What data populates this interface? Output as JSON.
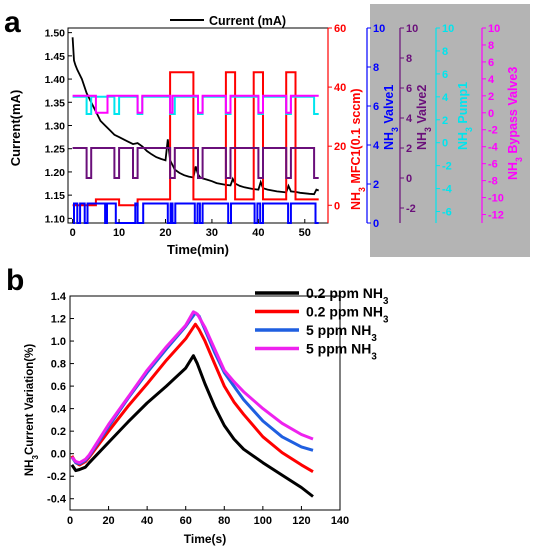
{
  "chart_data": [
    {
      "panel_label": "a",
      "type": "line",
      "xlabel": "Time(min)",
      "xlim": [
        -1,
        55
      ],
      "xticks": [
        0,
        10,
        20,
        30,
        40,
        50
      ],
      "legend": {
        "label": "Current (mA)",
        "placement": "top"
      },
      "axes": [
        {
          "key": "current",
          "label": "Current(mA)",
          "color": "#000000",
          "side": "left",
          "ylim": [
            1.09,
            1.51
          ],
          "ticks": [
            1.1,
            1.15,
            1.2,
            1.25,
            1.3,
            1.35,
            1.4,
            1.45,
            1.5
          ],
          "tick_labels": [
            "1.10",
            "1.15",
            "1.20",
            "1.25",
            "1.30",
            "1.35",
            "1.40",
            "1.45",
            "1.50"
          ]
        },
        {
          "key": "mfc",
          "label": "NH3 MFC1(0.1 sccm)",
          "color": "#ff0000",
          "side": "right",
          "ylim": [
            -6,
            60
          ],
          "ticks": [
            0,
            20,
            40,
            60
          ],
          "tick_labels": [
            "0",
            "20",
            "40",
            "60"
          ]
        },
        {
          "key": "valve1",
          "label": "NH3 Valve1",
          "color": "#0000ff",
          "side": "right",
          "ylim": [
            0,
            10
          ],
          "ticks": [
            0,
            2,
            4,
            6,
            8,
            10
          ],
          "tick_labels": [
            "0",
            "2",
            "4",
            "6",
            "8",
            "10"
          ]
        },
        {
          "key": "valve2",
          "label": "NH3 Valve2",
          "color": "#6a0f7a",
          "side": "right",
          "ylim": [
            -3,
            10
          ],
          "ticks": [
            -2,
            0,
            2,
            4,
            6,
            8,
            10
          ],
          "tick_labels": [
            "-2",
            "0",
            "2",
            "4",
            "6",
            "8",
            "10"
          ]
        },
        {
          "key": "pump1",
          "label": "NH3 Pump1",
          "color": "#00e5ee",
          "side": "right",
          "ylim": [
            -7,
            10
          ],
          "ticks": [
            -6,
            -4,
            -2,
            0,
            2,
            4,
            6,
            8,
            10
          ],
          "tick_labels": [
            "-6",
            "-4",
            "-2",
            "0",
            "2",
            "4",
            "6",
            "8",
            "10"
          ]
        },
        {
          "key": "bypass",
          "label": "NH3 Bypass Valve3",
          "color": "#ff00ff",
          "side": "right",
          "ylim": [
            -13,
            10
          ],
          "ticks": [
            -12,
            -10,
            -8,
            -6,
            -4,
            -2,
            0,
            2,
            4,
            6,
            8,
            10
          ],
          "tick_labels": [
            "-12",
            "-10",
            "-8",
            "-6",
            "-4",
            "-2",
            "0",
            "2",
            "4",
            "6",
            "8",
            "10"
          ]
        }
      ],
      "series": [
        {
          "key": "current",
          "name": "Current (mA)",
          "color": "#000000",
          "step": false,
          "x": [
            0,
            0.3,
            0.6,
            1,
            2,
            3,
            4,
            5,
            6,
            7,
            8,
            9,
            10,
            11,
            12,
            13,
            14,
            15,
            16,
            17,
            18,
            19,
            20,
            20.5,
            21,
            21.5,
            22,
            23,
            24,
            25,
            26,
            26.5,
            27,
            27.5,
            28,
            29,
            30,
            31,
            32,
            33,
            34,
            34.5,
            35,
            36,
            37,
            38,
            39,
            40,
            40.5,
            41,
            42,
            43,
            44,
            45,
            46,
            46.5,
            47,
            48,
            49,
            50,
            51,
            52,
            52.5,
            53
          ],
          "y": [
            1.49,
            1.44,
            1.43,
            1.42,
            1.4,
            1.37,
            1.35,
            1.33,
            1.31,
            1.3,
            1.29,
            1.28,
            1.275,
            1.27,
            1.265,
            1.26,
            1.262,
            1.255,
            1.245,
            1.238,
            1.232,
            1.228,
            1.225,
            1.27,
            1.225,
            1.215,
            1.205,
            1.198,
            1.193,
            1.19,
            1.188,
            1.212,
            1.195,
            1.188,
            1.186,
            1.183,
            1.18,
            1.176,
            1.174,
            1.172,
            1.171,
            1.185,
            1.175,
            1.17,
            1.167,
            1.165,
            1.163,
            1.162,
            1.178,
            1.165,
            1.162,
            1.16,
            1.158,
            1.157,
            1.156,
            1.17,
            1.158,
            1.157,
            1.155,
            1.154,
            1.153,
            1.152,
            1.162,
            1.16
          ]
        },
        {
          "key": "mfc",
          "name": "NH3 MFC1(0.1 sccm)",
          "color": "#ff0000",
          "step": true,
          "x": [
            0,
            5,
            5,
            10,
            10,
            14,
            14,
            21,
            21,
            26,
            26,
            28,
            28,
            33,
            33,
            35,
            35,
            39,
            39,
            41,
            41,
            46,
            46,
            48,
            48,
            53
          ],
          "y": [
            0,
            0,
            2,
            2,
            0,
            0,
            2,
            2,
            45,
            45,
            2,
            2,
            2,
            2,
            45,
            45,
            2,
            2,
            45,
            45,
            2,
            2,
            45,
            45,
            2,
            2
          ]
        },
        {
          "key": "valve1",
          "name": "NH3 Valve1",
          "color": "#0000ff",
          "step": true,
          "x": [
            0,
            0.3,
            0.3,
            1,
            1,
            1.6,
            1.6,
            2.6,
            2.6,
            3.2,
            3.2,
            7,
            7,
            7.4,
            7.4,
            9.3,
            9.3,
            13.5,
            13.5,
            14,
            14,
            15.2,
            15.2,
            20.5,
            20.5,
            21.1,
            21.1,
            21.5,
            21.5,
            22.1,
            22.1,
            26.3,
            26.3,
            26.9,
            26.9,
            27.4,
            27.4,
            28,
            28,
            33.5,
            33.5,
            34.1,
            34.1,
            39.2,
            39.2,
            39.8,
            39.8,
            40.4,
            40.4,
            41,
            41,
            46.4,
            46.4,
            47,
            47,
            52.3,
            52.3,
            53
          ],
          "y": [
            0,
            0,
            1,
            1,
            0,
            0,
            1,
            1,
            0,
            0,
            1,
            1,
            0,
            0,
            1,
            1,
            0,
            0,
            1,
            1,
            0,
            0,
            1,
            1,
            0,
            0,
            1,
            1,
            0,
            0,
            1,
            1,
            0,
            0,
            1,
            1,
            0,
            0,
            1,
            1,
            0,
            0,
            1,
            1,
            0,
            0,
            1,
            1,
            0,
            0,
            1,
            1,
            0,
            0,
            1,
            1,
            0,
            0
          ]
        },
        {
          "key": "valve2",
          "name": "NH3 Valve2",
          "color": "#6a0f7a",
          "step": true,
          "x": [
            0,
            3,
            3,
            4,
            4,
            9,
            9,
            10,
            10,
            13,
            13,
            14,
            14,
            21,
            21,
            22,
            22,
            27,
            27,
            28,
            28,
            33,
            33,
            34,
            34,
            40,
            40,
            41,
            41,
            46,
            46,
            47,
            47,
            52,
            52,
            53
          ],
          "y": [
            2,
            2,
            0,
            0,
            2,
            2,
            0,
            0,
            2,
            2,
            0,
            0,
            2,
            2,
            0,
            0,
            2,
            2,
            0,
            0,
            2,
            2,
            0,
            0,
            2,
            2,
            0,
            0,
            2,
            2,
            0,
            0,
            2,
            2,
            0,
            0
          ]
        },
        {
          "key": "pump1",
          "name": "NH3 Pump1",
          "color": "#00e5ee",
          "step": true,
          "x": [
            0,
            3,
            3,
            4,
            4,
            9,
            9,
            10,
            10,
            14,
            14,
            15,
            15,
            21,
            21,
            22,
            22,
            27,
            27,
            28,
            28,
            33,
            33,
            34,
            34,
            40,
            40,
            41,
            41,
            46,
            46,
            47,
            47,
            52,
            52,
            53
          ],
          "y": [
            4,
            4,
            2.5,
            2.5,
            4,
            4,
            2.5,
            2.5,
            4,
            4,
            2.5,
            2.5,
            4,
            4,
            2.5,
            2.5,
            4,
            4,
            2.5,
            2.5,
            4,
            4,
            2.5,
            2.5,
            4,
            4,
            2.5,
            2.5,
            4,
            4,
            2.5,
            2.5,
            4,
            4,
            2.5,
            2.5
          ]
        },
        {
          "key": "bypass",
          "name": "NH3 Bypass Valve3",
          "color": "#ff00ff",
          "step": true,
          "x": [
            0,
            5,
            5,
            7.5,
            7.5,
            14,
            14,
            15,
            15,
            21,
            21,
            21.5,
            21.5,
            27,
            27,
            28,
            28,
            33,
            33,
            34,
            34,
            40,
            40,
            41,
            41,
            46,
            46,
            47,
            47,
            53
          ],
          "y": [
            2,
            2,
            0,
            0,
            2,
            2,
            0,
            0,
            2,
            2,
            0,
            0,
            2,
            2,
            0,
            0,
            2,
            2,
            0,
            0,
            2,
            2,
            0,
            0,
            2,
            2,
            0,
            0,
            2,
            2
          ]
        }
      ]
    },
    {
      "panel_label": "b",
      "type": "line",
      "xlabel": "Time(s)",
      "ylabel": "NH3 Current Variation(%)",
      "xlim": [
        0,
        140
      ],
      "ylim": [
        -0.5,
        1.4
      ],
      "xticks": [
        0,
        20,
        40,
        60,
        80,
        100,
        120,
        140
      ],
      "yticks": [
        -0.4,
        -0.2,
        0.0,
        0.2,
        0.4,
        0.6,
        0.8,
        1.0,
        1.2,
        1.4
      ],
      "ytick_labels": [
        "-0.4",
        "-0.2",
        "0.0",
        "0.2",
        "0.4",
        "0.6",
        "0.8",
        "1.0",
        "1.2",
        "1.4"
      ],
      "legend_placement": "top-right",
      "series": [
        {
          "name": "0.2 ppm NH3",
          "color": "#000000",
          "x": [
            1,
            3,
            5,
            8,
            10,
            20,
            30,
            40,
            50,
            60,
            64,
            66,
            70,
            75,
            80,
            85,
            90,
            100,
            110,
            120,
            126
          ],
          "y": [
            -0.1,
            -0.15,
            -0.14,
            -0.12,
            -0.08,
            0.1,
            0.28,
            0.45,
            0.6,
            0.76,
            0.87,
            0.8,
            0.62,
            0.42,
            0.25,
            0.13,
            0.04,
            -0.08,
            -0.19,
            -0.3,
            -0.38
          ]
        },
        {
          "name": "0.2 ppm NH3",
          "color": "#ff0000",
          "x": [
            1,
            3,
            5,
            8,
            10,
            20,
            30,
            40,
            50,
            60,
            65,
            67,
            70,
            75,
            80,
            85,
            90,
            100,
            110,
            120,
            126
          ],
          "y": [
            -0.02,
            -0.08,
            -0.1,
            -0.07,
            -0.03,
            0.2,
            0.42,
            0.62,
            0.83,
            1.02,
            1.15,
            1.1,
            1.0,
            0.8,
            0.6,
            0.46,
            0.35,
            0.15,
            0.01,
            -0.1,
            -0.16
          ]
        },
        {
          "name": "5 ppm NH3",
          "color": "#1f5fe0",
          "x": [
            1,
            3,
            5,
            8,
            10,
            20,
            30,
            40,
            50,
            60,
            65,
            67,
            70,
            75,
            80,
            85,
            90,
            100,
            110,
            120,
            126
          ],
          "y": [
            -0.03,
            -0.08,
            -0.09,
            -0.06,
            -0.02,
            0.24,
            0.49,
            0.72,
            0.93,
            1.13,
            1.25,
            1.22,
            1.1,
            0.9,
            0.72,
            0.6,
            0.48,
            0.29,
            0.15,
            0.06,
            0.03
          ]
        },
        {
          "name": "5 ppm NH3",
          "color": "#ee22ee",
          "x": [
            1,
            3,
            5,
            8,
            10,
            20,
            30,
            40,
            50,
            60,
            64,
            66,
            70,
            75,
            80,
            85,
            90,
            100,
            110,
            120,
            126
          ],
          "y": [
            -0.03,
            -0.07,
            -0.08,
            -0.05,
            -0.01,
            0.26,
            0.5,
            0.74,
            0.95,
            1.14,
            1.26,
            1.24,
            1.12,
            0.93,
            0.74,
            0.64,
            0.55,
            0.4,
            0.27,
            0.17,
            0.13
          ]
        }
      ]
    }
  ]
}
